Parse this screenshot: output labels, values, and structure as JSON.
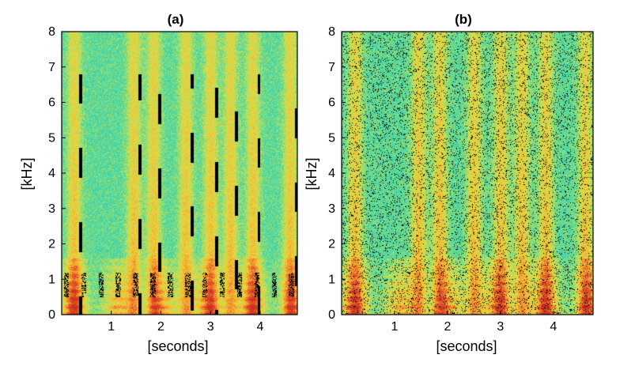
{
  "chart_data": [
    {
      "type": "heatmap",
      "title": "(a)",
      "xlabel": "[seconds]",
      "ylabel": "[kHz]",
      "xlim": [
        0,
        4.75
      ],
      "ylim": [
        0,
        8
      ],
      "xticks": [
        "1",
        "2",
        "3",
        "4"
      ],
      "yticks": [
        "0",
        "1",
        "2",
        "3",
        "4",
        "5",
        "6",
        "7",
        "8"
      ],
      "colormap": [
        "#2ad0b8",
        "#4cd6a4",
        "#b8e25a",
        "#f2d23a",
        "#f4a02e",
        "#e8542a",
        "#c9301e"
      ],
      "masked_color": "#000000",
      "description": "spectrogram with contiguous black masked regions"
    },
    {
      "type": "heatmap",
      "title": "(b)",
      "xlabel": "[seconds]",
      "ylabel": "[kHz]",
      "xlim": [
        0,
        4.75
      ],
      "ylim": [
        0,
        8
      ],
      "xticks": [
        "1",
        "2",
        "3",
        "4"
      ],
      "yticks": [
        "0",
        "1",
        "2",
        "3",
        "4",
        "5",
        "6",
        "7",
        "8"
      ],
      "colormap": [
        "#2ad0b8",
        "#4cd6a4",
        "#b8e25a",
        "#f2d23a",
        "#f4a02e",
        "#e8542a",
        "#c9301e"
      ],
      "masked_color": "#000000",
      "description": "spectrogram with randomly scattered black masked pixels"
    }
  ]
}
